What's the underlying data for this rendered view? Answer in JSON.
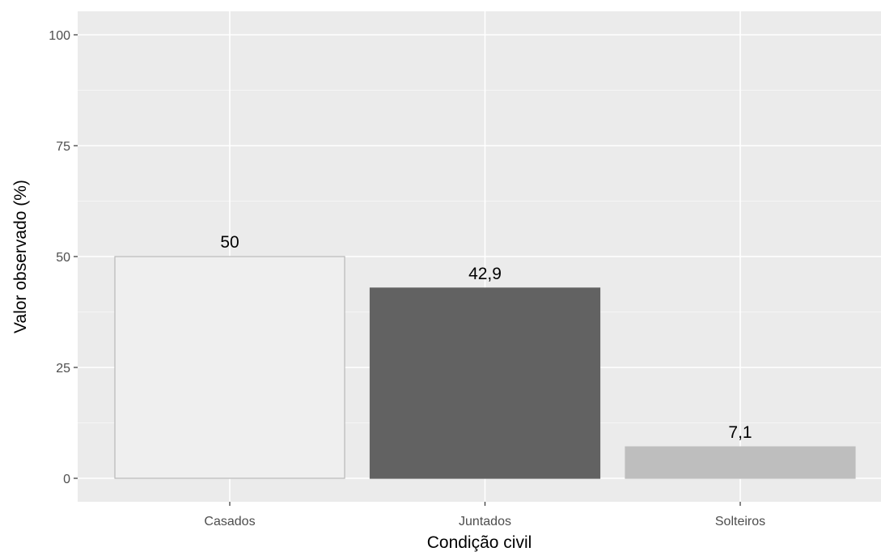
{
  "chart_data": {
    "type": "bar",
    "categories": [
      "Casados",
      "Juntados",
      "Solteiros"
    ],
    "values": [
      50,
      42.9,
      7.1
    ],
    "data_labels": [
      "50",
      "42,9",
      "7,1"
    ],
    "bar_fills": [
      "#efefef",
      "#626262",
      "#bebebe"
    ],
    "bar_outlines": [
      "#b8b8b8",
      "#626262",
      "#bebebe"
    ],
    "title": "",
    "xlabel": "Condição civil",
    "ylabel": "Valor observado (%)",
    "ylim": [
      0,
      100
    ],
    "yticks": [
      0,
      25,
      50,
      75,
      100
    ],
    "ytick_labels": [
      "0",
      "25",
      "50",
      "75",
      "100"
    ],
    "grid": true,
    "legend": "none",
    "colors": {
      "panel_background": "#ebebeb",
      "grid_major": "#ffffff",
      "grid_minor": "#f5f5f5",
      "tick_text": "#4d4d4d",
      "tick_mark": "#333333"
    }
  }
}
